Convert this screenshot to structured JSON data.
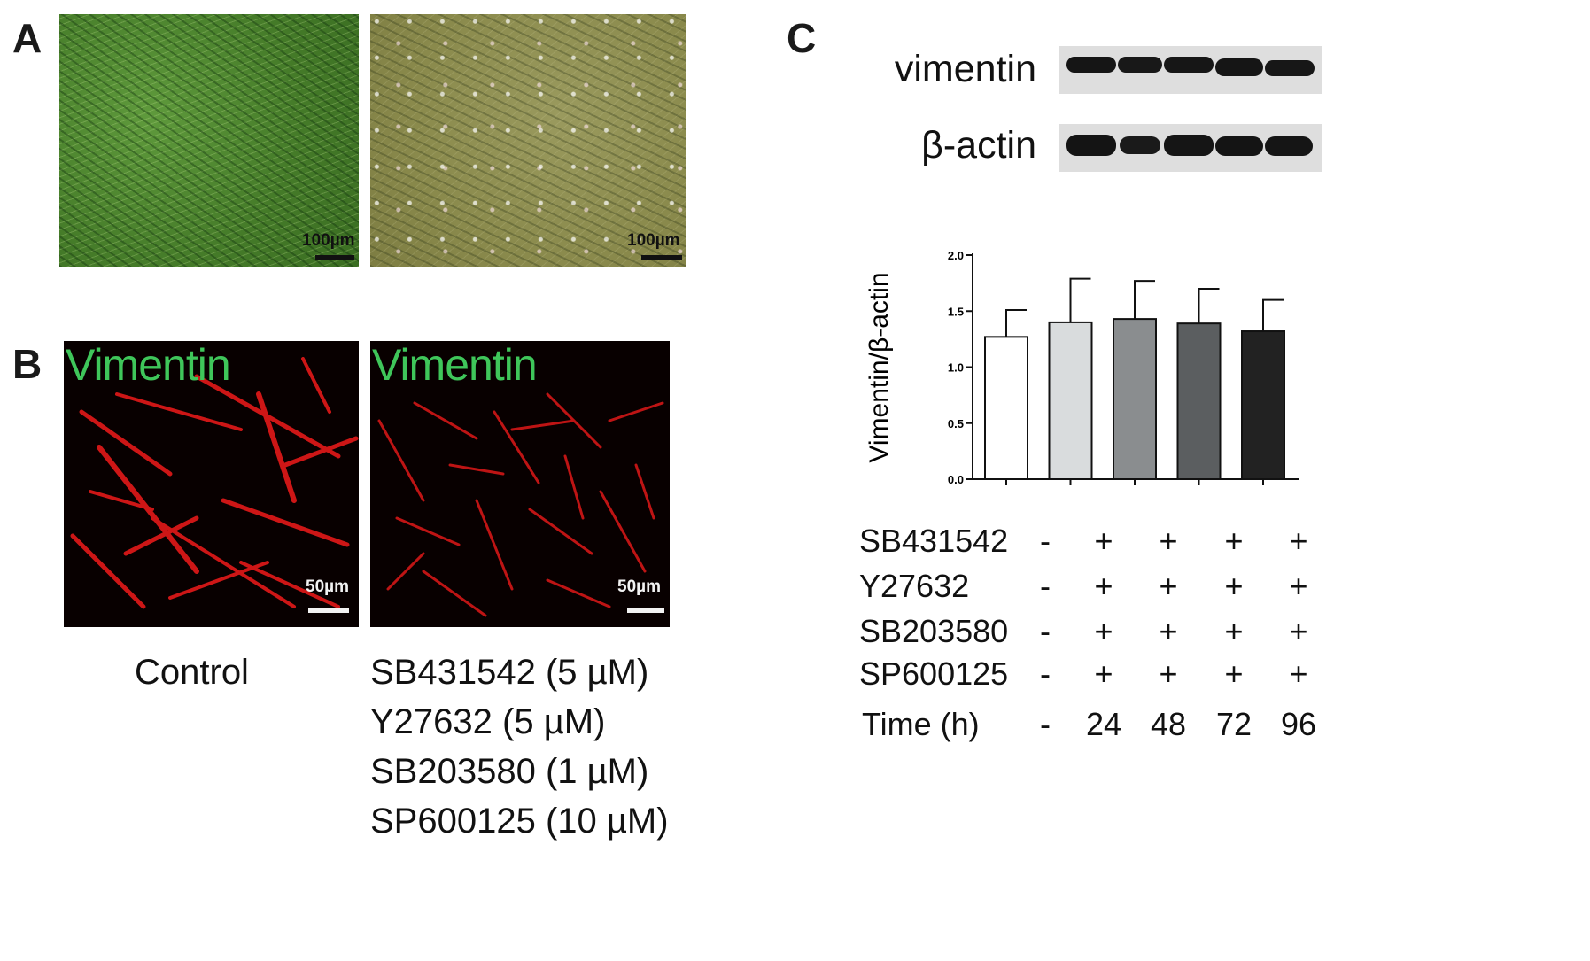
{
  "panel_a": {
    "letter": "A",
    "left_scale": "100µm",
    "right_scale": "100µm"
  },
  "panel_b": {
    "letter": "B",
    "left_stain": "Vimentin",
    "right_stain": "Vimentin",
    "left_scale": "50µm",
    "right_scale": "50µm",
    "control_label": "Control",
    "treatment_lines": [
      "SB431542 (5 µM)",
      "Y27632 (5 µM)",
      "SB203580 (1 µM)",
      "SP600125 (10 µM)"
    ]
  },
  "panel_c": {
    "letter": "C",
    "blot_labels": [
      "vimentin",
      "β-actin"
    ],
    "table": {
      "rows": [
        {
          "label": "SB431542",
          "values": [
            "-",
            "+",
            "+",
            "+",
            "+"
          ]
        },
        {
          "label": "Y27632",
          "values": [
            "-",
            "+",
            "+",
            "+",
            "+"
          ]
        },
        {
          "label": "SB203580",
          "values": [
            "-",
            "+",
            "+",
            "+",
            "+"
          ]
        },
        {
          "label": "SP600125",
          "values": [
            "-",
            "+",
            "+",
            "+",
            "+"
          ]
        },
        {
          "label": "Time (h)",
          "values": [
            "-",
            "24",
            "48",
            "72",
            "96"
          ]
        }
      ]
    }
  },
  "chart_data": {
    "type": "bar",
    "title": "",
    "xlabel": "",
    "ylabel": "Vimentin/β-actin",
    "ylim": [
      0,
      2.0
    ],
    "yticks": [
      "0.0",
      "0.5",
      "1.0",
      "1.5",
      "2.0"
    ],
    "categories": [
      "-",
      "24",
      "48",
      "72",
      "96"
    ],
    "values": [
      1.27,
      1.4,
      1.43,
      1.39,
      1.32
    ],
    "errors": [
      0.24,
      0.39,
      0.34,
      0.31,
      0.28
    ],
    "bar_colors": [
      "#ffffff",
      "#d9dcdd",
      "#8a8d8f",
      "#5b5e60",
      "#222222"
    ],
    "grid": false
  }
}
